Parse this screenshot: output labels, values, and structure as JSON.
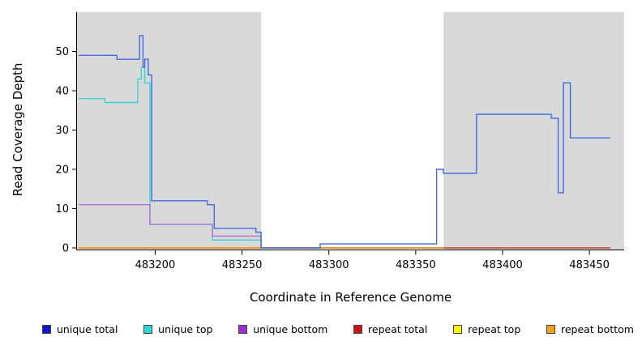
{
  "chart_data": {
    "type": "line",
    "title": "",
    "xlabel": "Coordinate in Reference Genome",
    "ylabel": "Read Coverage Depth",
    "xlim": [
      483155,
      483470
    ],
    "ylim": [
      0,
      60
    ],
    "x_ticks": [
      483200,
      483250,
      483300,
      483350,
      483400,
      483450
    ],
    "x_tick_labels": [
      "483200",
      "483250",
      "483300",
      "483350",
      "483400",
      "483450"
    ],
    "y_ticks": [
      0,
      10,
      20,
      30,
      40,
      50
    ],
    "y_tick_labels": [
      "0",
      "10",
      "20",
      "30",
      "40",
      "50"
    ],
    "grid": false,
    "plot_bg": "#ffffff",
    "shade_color": "#d9d9d9",
    "shaded_regions": [
      [
        483155,
        483261
      ],
      [
        483366,
        483470
      ]
    ],
    "legend_position": "bottom",
    "draw_order": [
      1,
      2,
      4,
      3,
      5,
      0
    ],
    "series": [
      {
        "name": "unique total",
        "color": "#4169e1",
        "x_end": 483462,
        "points": [
          [
            483156,
            49
          ],
          [
            483178,
            48
          ],
          [
            483191,
            54
          ],
          [
            483193,
            46
          ],
          [
            483194,
            48
          ],
          [
            483196,
            44
          ],
          [
            483198,
            12
          ],
          [
            483230,
            11
          ],
          [
            483234,
            5
          ],
          [
            483258,
            4
          ],
          [
            483261,
            0
          ],
          [
            483295,
            1
          ],
          [
            483362,
            20
          ],
          [
            483366,
            19
          ],
          [
            483385,
            34
          ],
          [
            483428,
            33
          ],
          [
            483432,
            14
          ],
          [
            483435,
            42
          ],
          [
            483439,
            28
          ]
        ]
      },
      {
        "name": "unique top",
        "color": "#35d5d5",
        "x_end": 483462,
        "points": [
          [
            483156,
            38
          ],
          [
            483171,
            37
          ],
          [
            483190,
            43
          ],
          [
            483192,
            46
          ],
          [
            483194,
            42
          ],
          [
            483197,
            6
          ],
          [
            483233,
            2
          ],
          [
            483261,
            0
          ]
        ]
      },
      {
        "name": "unique bottom",
        "color": "#b06fd8",
        "x_end": 483462,
        "points": [
          [
            483156,
            11
          ],
          [
            483197,
            6
          ],
          [
            483233,
            3
          ],
          [
            483261,
            0
          ]
        ]
      },
      {
        "name": "repeat total",
        "color": "#d04545",
        "x_end": 483462,
        "points": [
          [
            483156,
            0
          ]
        ]
      },
      {
        "name": "repeat top",
        "color": "#f0e622",
        "x_end": 483462,
        "points": [
          [
            483156,
            0
          ]
        ]
      },
      {
        "name": "repeat bottom",
        "color": "#f5a020",
        "x_end": 483366,
        "points": [
          [
            483156,
            0
          ]
        ]
      }
    ],
    "legend": [
      {
        "label": "unique total",
        "color": "#1414cc"
      },
      {
        "label": "unique top",
        "color": "#30d5d5"
      },
      {
        "label": "unique bottom",
        "color": "#9b30d0"
      },
      {
        "label": "repeat total",
        "color": "#cc1414"
      },
      {
        "label": "repeat top",
        "color": "#f5f514"
      },
      {
        "label": "repeat bottom",
        "color": "#f5a014"
      }
    ]
  }
}
